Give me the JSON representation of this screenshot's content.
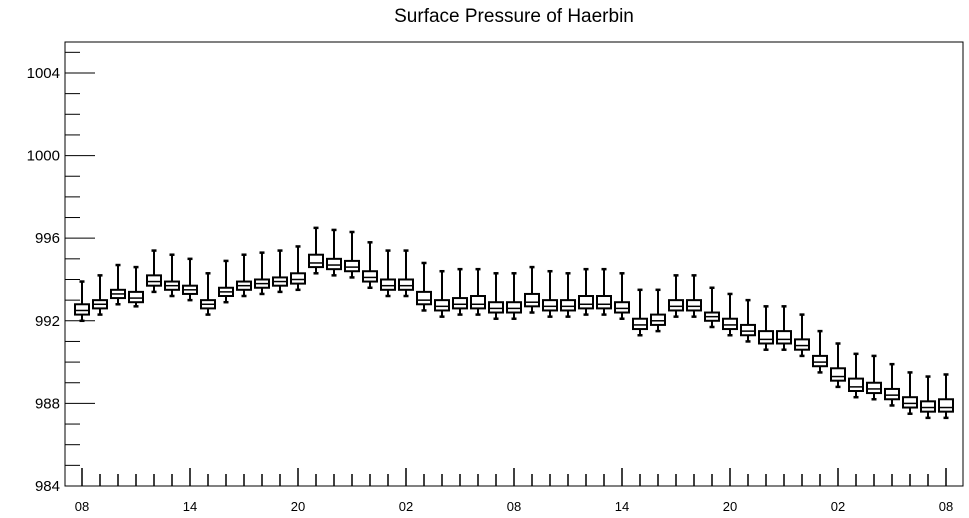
{
  "chart_data": {
    "type": "boxplot",
    "title": "Surface Pressure of Haerbin",
    "xlabel": "",
    "ylabel": "",
    "ylim": [
      984,
      1005.5
    ],
    "yticks": [
      984,
      988,
      992,
      996,
      1000,
      1004
    ],
    "ytick_labels": [
      "984",
      "988",
      "992",
      "996",
      "1000",
      "1004"
    ],
    "xtick_labels": [
      "08",
      "14",
      "20",
      "02",
      "08",
      "14",
      "20",
      "02",
      "08"
    ],
    "xtick_every": 6,
    "grid": false,
    "legend": "none",
    "series": [
      {
        "q1": [
          992.3,
          992.6,
          993.1,
          992.9,
          993.7,
          993.5,
          993.3,
          992.6,
          993.2,
          993.5,
          993.6,
          993.7,
          993.8,
          994.6,
          994.5,
          994.4,
          993.9,
          993.5,
          993.5,
          992.8,
          992.5,
          992.6,
          992.6,
          992.4,
          992.4,
          992.7,
          992.5,
          992.5,
          992.6,
          992.6,
          992.4,
          991.6,
          991.8,
          992.5,
          992.5,
          992.0,
          991.6,
          991.3,
          990.9,
          990.9,
          990.6,
          989.8,
          989.1,
          988.6,
          988.5,
          988.2,
          987.8,
          987.6,
          987.6
        ],
        "median": [
          992.5,
          992.8,
          993.3,
          993.1,
          993.9,
          993.7,
          993.5,
          992.8,
          993.4,
          993.7,
          993.8,
          993.9,
          994.0,
          994.8,
          994.7,
          994.6,
          994.1,
          993.7,
          993.7,
          993.0,
          992.7,
          992.8,
          992.8,
          992.6,
          992.6,
          992.9,
          992.7,
          992.7,
          992.8,
          992.8,
          992.6,
          991.8,
          992.0,
          992.7,
          992.7,
          992.2,
          991.8,
          991.5,
          991.1,
          991.1,
          990.8,
          990.0,
          989.3,
          988.8,
          988.7,
          988.4,
          988.0,
          987.8,
          987.8
        ],
        "q3": [
          992.8,
          993.0,
          993.5,
          993.4,
          994.2,
          993.9,
          993.7,
          993.0,
          993.6,
          993.9,
          994.0,
          994.1,
          994.3,
          995.2,
          995.0,
          994.9,
          994.4,
          994.0,
          994.0,
          993.4,
          993.0,
          993.1,
          993.2,
          992.9,
          992.9,
          993.3,
          993.0,
          993.0,
          993.2,
          993.2,
          992.9,
          992.1,
          992.3,
          993.0,
          993.0,
          992.4,
          992.1,
          991.8,
          991.5,
          991.5,
          991.1,
          990.3,
          989.7,
          989.2,
          989.0,
          988.7,
          988.3,
          988.1,
          988.2
        ],
        "min": [
          992.0,
          992.3,
          992.8,
          992.7,
          993.4,
          993.2,
          993.0,
          992.3,
          992.9,
          993.2,
          993.3,
          993.4,
          993.5,
          994.3,
          994.2,
          994.1,
          993.6,
          993.2,
          993.2,
          992.5,
          992.2,
          992.3,
          992.3,
          992.1,
          992.1,
          992.4,
          992.2,
          992.2,
          992.3,
          992.3,
          992.1,
          991.3,
          991.5,
          992.2,
          992.2,
          991.7,
          991.3,
          991.0,
          990.6,
          990.6,
          990.3,
          989.5,
          988.8,
          988.3,
          988.2,
          987.9,
          987.5,
          987.3,
          987.3
        ],
        "max": [
          993.9,
          994.2,
          994.7,
          994.6,
          995.4,
          995.2,
          995.0,
          994.3,
          994.9,
          995.2,
          995.3,
          995.4,
          995.6,
          996.5,
          996.4,
          996.3,
          995.8,
          995.4,
          995.4,
          994.8,
          994.4,
          994.5,
          994.5,
          994.3,
          994.3,
          994.6,
          994.4,
          994.3,
          994.5,
          994.5,
          994.3,
          993.5,
          993.5,
          994.2,
          994.2,
          993.6,
          993.3,
          993.0,
          992.7,
          992.7,
          992.3,
          991.5,
          990.9,
          990.4,
          990.3,
          989.9,
          989.5,
          989.3,
          989.4
        ]
      }
    ]
  }
}
